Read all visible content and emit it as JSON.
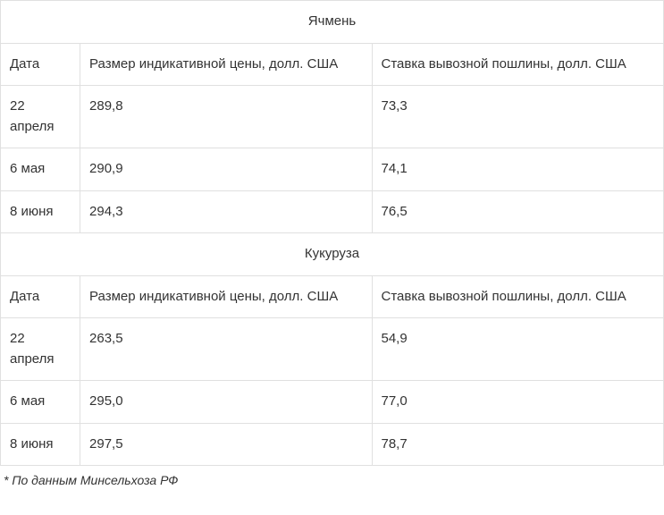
{
  "columns": {
    "date_label": "Дата",
    "price_label": "Размер индикативной цены, долл. США",
    "duty_label": "Ставка вывозной пошлины, долл. США"
  },
  "sections": [
    {
      "title": "Ячмень",
      "rows": [
        {
          "date": "22 апреля",
          "price": "289,8",
          "duty": "73,3"
        },
        {
          "date": "6 мая",
          "price": "290,9",
          "duty": "74,1"
        },
        {
          "date": "8 июня",
          "price": "294,3",
          "duty": "76,5"
        }
      ]
    },
    {
      "title": "Кукуруза",
      "rows": [
        {
          "date": "22 апреля",
          "price": "263,5",
          "duty": "54,9"
        },
        {
          "date": "6 мая",
          "price": "295,0",
          "duty": "77,0"
        },
        {
          "date": "8 июня",
          "price": "297,5",
          "duty": "78,7"
        }
      ]
    }
  ],
  "footnote": "* По данным Минсельхоза РФ",
  "styling": {
    "border_color": "#e0e0e0",
    "text_color": "#333333",
    "background_color": "#ffffff",
    "font_size": 15,
    "footnote_font_size": 14
  }
}
